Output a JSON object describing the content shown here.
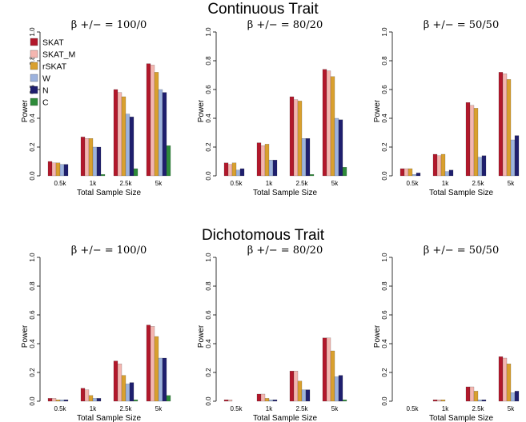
{
  "section_titles": [
    "Continuous Trait",
    "Dichotomous Trait"
  ],
  "legend": {
    "series": [
      {
        "name": "SKAT",
        "color": "#b2182b"
      },
      {
        "name": "SKAT_M",
        "color": "#f4b6b0"
      },
      {
        "name": "rSKAT",
        "color": "#d9a02e"
      },
      {
        "name": "W",
        "color": "#9db3de"
      },
      {
        "name": "N",
        "color": "#1f1f6e"
      },
      {
        "name": "C",
        "color": "#2e8b3a"
      }
    ]
  },
  "chart_data": [
    {
      "type": "bar",
      "section": "Continuous Trait",
      "title": "β +/− = 100/0",
      "xlabel": "Total Sample Size",
      "ylabel": "Power",
      "categories": [
        "0.5k",
        "1k",
        "2.5k",
        "5k"
      ],
      "ylim": [
        0,
        1.0
      ],
      "yticks": [
        "0.0",
        "0.2",
        "0.4",
        "0.6",
        "0.8",
        "1.0"
      ],
      "series": [
        {
          "name": "SKAT",
          "values": [
            0.1,
            0.27,
            0.6,
            0.78
          ]
        },
        {
          "name": "SKAT_M",
          "values": [
            0.09,
            0.26,
            0.58,
            0.77
          ]
        },
        {
          "name": "rSKAT",
          "values": [
            0.09,
            0.26,
            0.55,
            0.72
          ]
        },
        {
          "name": "W",
          "values": [
            0.08,
            0.2,
            0.43,
            0.6
          ]
        },
        {
          "name": "N",
          "values": [
            0.08,
            0.2,
            0.41,
            0.58
          ]
        },
        {
          "name": "C",
          "values": [
            0.0,
            0.01,
            0.05,
            0.21
          ]
        }
      ]
    },
    {
      "type": "bar",
      "section": "Continuous Trait",
      "title": "β +/− = 80/20",
      "xlabel": "Total Sample Size",
      "ylabel": "Power",
      "categories": [
        "0.5k",
        "1k",
        "2.5k",
        "5k"
      ],
      "ylim": [
        0,
        1.0
      ],
      "yticks": [
        "0.0",
        "0.2",
        "0.4",
        "0.6",
        "0.8",
        "1.0"
      ],
      "series": [
        {
          "name": "SKAT",
          "values": [
            0.09,
            0.23,
            0.55,
            0.74
          ]
        },
        {
          "name": "SKAT_M",
          "values": [
            0.08,
            0.21,
            0.53,
            0.73
          ]
        },
        {
          "name": "rSKAT",
          "values": [
            0.09,
            0.22,
            0.52,
            0.69
          ]
        },
        {
          "name": "W",
          "values": [
            0.04,
            0.11,
            0.26,
            0.4
          ]
        },
        {
          "name": "N",
          "values": [
            0.05,
            0.11,
            0.26,
            0.39
          ]
        },
        {
          "name": "C",
          "values": [
            0.0,
            0.0,
            0.01,
            0.06
          ]
        }
      ]
    },
    {
      "type": "bar",
      "section": "Continuous Trait",
      "title": "β +/− = 50/50",
      "xlabel": "Total Sample Size",
      "ylabel": "Power",
      "categories": [
        "0.5k",
        "1k",
        "2.5k",
        "5k"
      ],
      "ylim": [
        0,
        1.0
      ],
      "yticks": [
        "0.0",
        "0.2",
        "0.4",
        "0.6",
        "0.8",
        "1.0"
      ],
      "series": [
        {
          "name": "SKAT",
          "values": [
            0.05,
            0.15,
            0.51,
            0.72
          ]
        },
        {
          "name": "SKAT_M",
          "values": [
            0.05,
            0.14,
            0.49,
            0.71
          ]
        },
        {
          "name": "rSKAT",
          "values": [
            0.05,
            0.15,
            0.47,
            0.67
          ]
        },
        {
          "name": "W",
          "values": [
            0.01,
            0.03,
            0.13,
            0.25
          ]
        },
        {
          "name": "N",
          "values": [
            0.02,
            0.04,
            0.14,
            0.28
          ]
        },
        {
          "name": "C",
          "values": [
            0.0,
            0.0,
            0.0,
            0.0
          ]
        }
      ]
    },
    {
      "type": "bar",
      "section": "Dichotomous Trait",
      "title": "β +/− = 100/0",
      "xlabel": "Total Sample Size",
      "ylabel": "Power",
      "categories": [
        "0.5k",
        "1k",
        "2.5k",
        "5k"
      ],
      "ylim": [
        0,
        1.0
      ],
      "yticks": [
        "0.0",
        "0.2",
        "0.4",
        "0.6",
        "0.8",
        "1.0"
      ],
      "series": [
        {
          "name": "SKAT",
          "values": [
            0.02,
            0.09,
            0.28,
            0.53
          ]
        },
        {
          "name": "SKAT_M",
          "values": [
            0.02,
            0.08,
            0.26,
            0.52
          ]
        },
        {
          "name": "rSKAT",
          "values": [
            0.01,
            0.04,
            0.18,
            0.45
          ]
        },
        {
          "name": "W",
          "values": [
            0.01,
            0.02,
            0.12,
            0.3
          ]
        },
        {
          "name": "N",
          "values": [
            0.01,
            0.02,
            0.13,
            0.3
          ]
        },
        {
          "name": "C",
          "values": [
            0.0,
            0.0,
            0.01,
            0.04
          ]
        }
      ]
    },
    {
      "type": "bar",
      "section": "Dichotomous Trait",
      "title": "β +/− = 80/20",
      "xlabel": "Total Sample Size",
      "ylabel": "Power",
      "categories": [
        "0.5k",
        "1k",
        "2.5k",
        "5k"
      ],
      "ylim": [
        0,
        1.0
      ],
      "yticks": [
        "0.0",
        "0.2",
        "0.4",
        "0.6",
        "0.8",
        "1.0"
      ],
      "series": [
        {
          "name": "SKAT",
          "values": [
            0.01,
            0.05,
            0.21,
            0.44
          ]
        },
        {
          "name": "SKAT_M",
          "values": [
            0.01,
            0.05,
            0.21,
            0.44
          ]
        },
        {
          "name": "rSKAT",
          "values": [
            0.0,
            0.02,
            0.14,
            0.35
          ]
        },
        {
          "name": "W",
          "values": [
            0.0,
            0.01,
            0.08,
            0.17
          ]
        },
        {
          "name": "N",
          "values": [
            0.0,
            0.01,
            0.08,
            0.18
          ]
        },
        {
          "name": "C",
          "values": [
            0.0,
            0.0,
            0.0,
            0.01
          ]
        }
      ]
    },
    {
      "type": "bar",
      "section": "Dichotomous Trait",
      "title": "β +/− = 50/50",
      "xlabel": "Total Sample Size",
      "ylabel": "Power",
      "categories": [
        "0.5k",
        "1k",
        "2.5k",
        "5k"
      ],
      "ylim": [
        0,
        1.0
      ],
      "yticks": [
        "0.0",
        "0.2",
        "0.4",
        "0.6",
        "0.8",
        "1.0"
      ],
      "series": [
        {
          "name": "SKAT",
          "values": [
            0.0,
            0.01,
            0.1,
            0.31
          ]
        },
        {
          "name": "SKAT_M",
          "values": [
            0.0,
            0.01,
            0.1,
            0.3
          ]
        },
        {
          "name": "rSKAT",
          "values": [
            0.0,
            0.01,
            0.07,
            0.26
          ]
        },
        {
          "name": "W",
          "values": [
            0.0,
            0.0,
            0.01,
            0.06
          ]
        },
        {
          "name": "N",
          "values": [
            0.0,
            0.0,
            0.01,
            0.07
          ]
        },
        {
          "name": "C",
          "values": [
            0.0,
            0.0,
            0.0,
            0.0
          ]
        }
      ]
    }
  ]
}
